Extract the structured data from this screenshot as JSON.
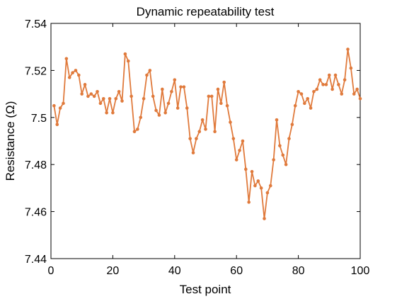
{
  "chart_data": {
    "type": "line",
    "title": "Dynamic repeatability test",
    "xlabel": "Test point",
    "ylabel": "Resistance (Ω)",
    "xlim": [
      0,
      100
    ],
    "ylim": [
      7.44,
      7.54
    ],
    "xticks": [
      0,
      20,
      40,
      60,
      80,
      100
    ],
    "xtick_labels": [
      "0",
      "20",
      "40",
      "60",
      "80",
      "100"
    ],
    "yticks": [
      7.44,
      7.46,
      7.48,
      7.5,
      7.52,
      7.54
    ],
    "ytick_labels": [
      "7.44",
      "7.46",
      "7.48",
      "7.5",
      "7.52",
      "7.54"
    ],
    "grid": false,
    "color": "#E07A3C",
    "marker": "circle",
    "series": [
      {
        "x": [
          1,
          2,
          3,
          4,
          5,
          6,
          7,
          8,
          9,
          10,
          11,
          12,
          13,
          14,
          15,
          16,
          17,
          18,
          19,
          20,
          21,
          22,
          23,
          24,
          25,
          26,
          27,
          28,
          29,
          30,
          31,
          32,
          33,
          34,
          35,
          36,
          37,
          38,
          39,
          40,
          41,
          42,
          43,
          44,
          45,
          46,
          47,
          48,
          49,
          50,
          51,
          52,
          53,
          54,
          55,
          56,
          57,
          58,
          59,
          60,
          61,
          62,
          63,
          64,
          65,
          66,
          67,
          68,
          69,
          70,
          71,
          72,
          73,
          74,
          75,
          76,
          77,
          78,
          79,
          80,
          81,
          82,
          83,
          84,
          85,
          86,
          87,
          88,
          89,
          90,
          91,
          92,
          93,
          94,
          95,
          96,
          97,
          98,
          99,
          100
        ],
        "y": [
          7.505,
          7.497,
          7.504,
          7.506,
          7.525,
          7.517,
          7.519,
          7.52,
          7.518,
          7.51,
          7.514,
          7.509,
          7.51,
          7.509,
          7.511,
          7.506,
          7.508,
          7.502,
          7.508,
          7.502,
          7.508,
          7.511,
          7.507,
          7.527,
          7.524,
          7.509,
          7.494,
          7.495,
          7.5,
          7.508,
          7.518,
          7.52,
          7.509,
          7.503,
          7.501,
          7.512,
          7.502,
          7.506,
          7.511,
          7.516,
          7.504,
          7.513,
          7.513,
          7.504,
          7.491,
          7.485,
          7.491,
          7.494,
          7.499,
          7.495,
          7.509,
          7.509,
          7.494,
          7.512,
          7.506,
          7.515,
          7.505,
          7.498,
          7.491,
          7.482,
          7.486,
          7.49,
          7.478,
          7.464,
          7.477,
          7.471,
          7.473,
          7.47,
          7.457,
          7.468,
          7.471,
          7.482,
          7.499,
          7.488,
          7.484,
          7.48,
          7.491,
          7.497,
          7.505,
          7.511,
          7.51,
          7.506,
          7.508,
          7.504,
          7.511,
          7.512,
          7.516,
          7.514,
          7.514,
          7.518,
          7.512,
          7.518,
          7.514,
          7.51,
          7.516,
          7.529,
          7.521,
          7.51,
          7.512,
          7.508
        ]
      }
    ]
  }
}
